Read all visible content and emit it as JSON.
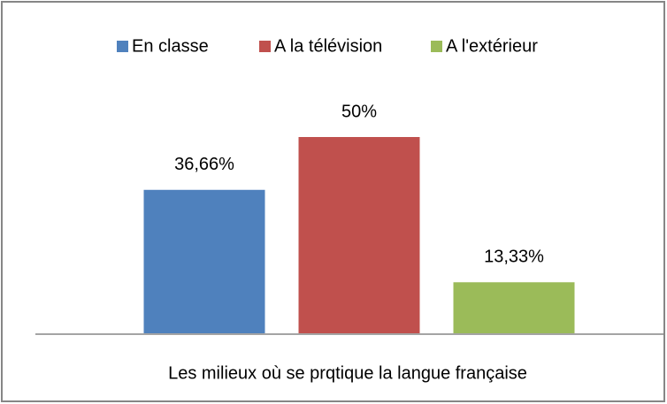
{
  "chart_data": {
    "type": "bar",
    "categories": [
      "Les milieux où se prqtique la langue française"
    ],
    "series": [
      {
        "name": "En classe",
        "color": "#4f81bd",
        "values": [
          36.66
        ],
        "value_labels": [
          "36,66%"
        ]
      },
      {
        "name": "A la télévision",
        "color": "#c0504d",
        "values": [
          50
        ],
        "value_labels": [
          "50%"
        ]
      },
      {
        "name": "A l'extérieur",
        "color": "#9bbb59",
        "values": [
          13.33
        ],
        "value_labels": [
          "13,33%"
        ]
      }
    ],
    "legend": "top"
  }
}
